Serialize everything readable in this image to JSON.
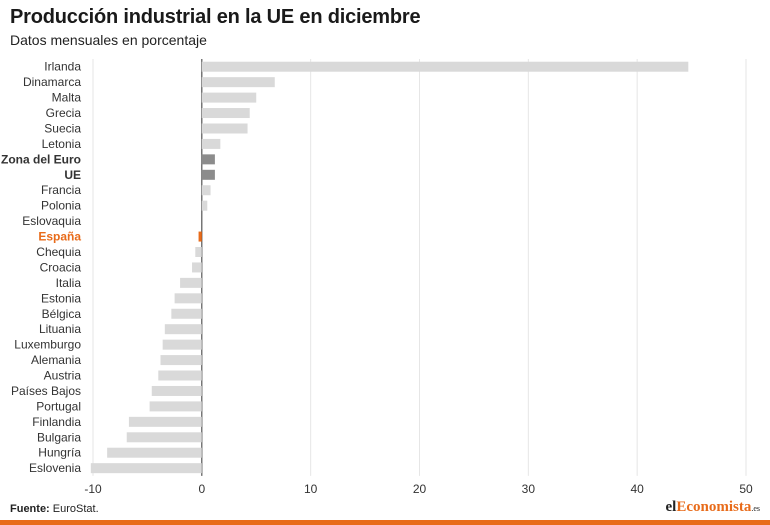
{
  "title": "Producción industrial en la UE en diciembre",
  "subtitle": "Datos mensuales en porcentaje",
  "source": {
    "label": "Fuente:",
    "text": "EuroStat."
  },
  "logo": {
    "main_a": "el",
    "main_b": "Economista",
    "tld": ".es"
  },
  "colors": {
    "bar_default": "#d9d9d9",
    "bar_aggregate": "#8c8c8c",
    "bar_highlight": "#e86b1a",
    "label_highlight": "#e86b1a",
    "grid": "#e6e6e6",
    "zero_line": "#333333",
    "accent_bar": "#e86b1a"
  },
  "chart_data": {
    "type": "bar",
    "orientation": "horizontal",
    "categories": [
      "Irlanda",
      "Dinamarca",
      "Malta",
      "Grecia",
      "Suecia",
      "Letonia",
      "Zona del Euro",
      "UE",
      "Francia",
      "Polonia",
      "Eslovaquia",
      "España",
      "Chequia",
      "Croacia",
      "Italia",
      "Estonia",
      "Bélgica",
      "Lituania",
      "Luxemburgo",
      "Alemania",
      "Austria",
      "Países Bajos",
      "Portugal",
      "Finlandia",
      "Bulgaria",
      "Hungría",
      "Eslovenia"
    ],
    "values": [
      44.7,
      6.7,
      5.0,
      4.4,
      4.2,
      1.7,
      1.2,
      1.2,
      0.8,
      0.5,
      0.0,
      -0.3,
      -0.6,
      -0.9,
      -2.0,
      -2.5,
      -2.8,
      -3.4,
      -3.6,
      -3.8,
      -4.0,
      -4.6,
      -4.8,
      -6.7,
      -6.9,
      -8.7,
      -10.2
    ],
    "aggregates": [
      "Zona del Euro",
      "UE"
    ],
    "highlight": "España",
    "xlim": [
      -10,
      50
    ],
    "xticks": [
      -10,
      0,
      10,
      20,
      30,
      40,
      50
    ],
    "grid": true,
    "legend": "none"
  }
}
